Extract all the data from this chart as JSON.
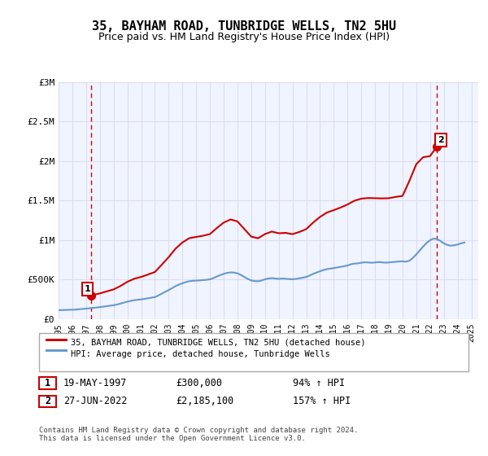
{
  "title": "35, BAYHAM ROAD, TUNBRIDGE WELLS, TN2 5HU",
  "subtitle": "Price paid vs. HM Land Registry's House Price Index (HPI)",
  "ylabel_ticks": [
    "£0",
    "£500K",
    "£1M",
    "£1.5M",
    "£2M",
    "£2.5M",
    "£3M"
  ],
  "ylabel_values": [
    0,
    500000,
    1000000,
    1500000,
    2000000,
    2500000,
    3000000
  ],
  "ylim": [
    0,
    3000000
  ],
  "xlim_start": 1995.0,
  "xlim_end": 2025.5,
  "xticks": [
    1995,
    1996,
    1997,
    1998,
    1999,
    2000,
    2001,
    2002,
    2003,
    2004,
    2005,
    2006,
    2007,
    2008,
    2009,
    2010,
    2011,
    2012,
    2013,
    2014,
    2015,
    2016,
    2017,
    2018,
    2019,
    2020,
    2021,
    2022,
    2023,
    2024,
    2025
  ],
  "sale1_x": 1997.38,
  "sale1_y": 300000,
  "sale1_label": "1",
  "sale1_date": "19-MAY-1997",
  "sale1_price": "£300,000",
  "sale1_hpi": "94% ↑ HPI",
  "sale2_x": 2022.49,
  "sale2_y": 2185100,
  "sale2_label": "2",
  "sale2_date": "27-JUN-2022",
  "sale2_price": "£2,185,100",
  "sale2_hpi": "157% ↑ HPI",
  "hpi_color": "#6699cc",
  "sale_color": "#cc0000",
  "dot_color": "#cc0000",
  "vline_color": "#cc0000",
  "grid_color": "#ddddee",
  "bg_color": "#f0f4ff",
  "legend_label1": "35, BAYHAM ROAD, TUNBRIDGE WELLS, TN2 5HU (detached house)",
  "legend_label2": "HPI: Average price, detached house, Tunbridge Wells",
  "footer": "Contains HM Land Registry data © Crown copyright and database right 2024.\nThis data is licensed under the Open Government Licence v3.0.",
  "hpi_data_x": [
    1995.0,
    1995.25,
    1995.5,
    1995.75,
    1996.0,
    1996.25,
    1996.5,
    1996.75,
    1997.0,
    1997.25,
    1997.5,
    1997.75,
    1998.0,
    1998.25,
    1998.5,
    1998.75,
    1999.0,
    1999.25,
    1999.5,
    1999.75,
    2000.0,
    2000.25,
    2000.5,
    2000.75,
    2001.0,
    2001.25,
    2001.5,
    2001.75,
    2002.0,
    2002.25,
    2002.5,
    2002.75,
    2003.0,
    2003.25,
    2003.5,
    2003.75,
    2004.0,
    2004.25,
    2004.5,
    2004.75,
    2005.0,
    2005.25,
    2005.5,
    2005.75,
    2006.0,
    2006.25,
    2006.5,
    2006.75,
    2007.0,
    2007.25,
    2007.5,
    2007.75,
    2008.0,
    2008.25,
    2008.5,
    2008.75,
    2009.0,
    2009.25,
    2009.5,
    2009.75,
    2010.0,
    2010.25,
    2010.5,
    2010.75,
    2011.0,
    2011.25,
    2011.5,
    2011.75,
    2012.0,
    2012.25,
    2012.5,
    2012.75,
    2013.0,
    2013.25,
    2013.5,
    2013.75,
    2014.0,
    2014.25,
    2014.5,
    2014.75,
    2015.0,
    2015.25,
    2015.5,
    2015.75,
    2016.0,
    2016.25,
    2016.5,
    2016.75,
    2017.0,
    2017.25,
    2017.5,
    2017.75,
    2018.0,
    2018.25,
    2018.5,
    2018.75,
    2019.0,
    2019.25,
    2019.5,
    2019.75,
    2020.0,
    2020.25,
    2020.5,
    2020.75,
    2021.0,
    2021.25,
    2021.5,
    2021.75,
    2022.0,
    2022.25,
    2022.5,
    2022.75,
    2023.0,
    2023.25,
    2023.5,
    2023.75,
    2024.0,
    2024.25,
    2024.5
  ],
  "hpi_data_y": [
    115000,
    116000,
    117000,
    118500,
    120000,
    122000,
    126000,
    130000,
    134000,
    138000,
    143000,
    148000,
    153000,
    159000,
    165000,
    171000,
    177000,
    186000,
    197000,
    210000,
    222000,
    232000,
    240000,
    246000,
    251000,
    257000,
    265000,
    272000,
    280000,
    300000,
    323000,
    346000,
    368000,
    393000,
    418000,
    438000,
    455000,
    470000,
    480000,
    486000,
    488000,
    491000,
    495000,
    498000,
    505000,
    520000,
    540000,
    558000,
    573000,
    586000,
    592000,
    590000,
    580000,
    560000,
    535000,
    510000,
    490000,
    482000,
    480000,
    490000,
    505000,
    515000,
    520000,
    515000,
    510000,
    515000,
    512000,
    508000,
    505000,
    510000,
    518000,
    525000,
    535000,
    553000,
    573000,
    590000,
    607000,
    622000,
    633000,
    640000,
    647000,
    655000,
    663000,
    670000,
    680000,
    695000,
    703000,
    706000,
    715000,
    720000,
    718000,
    714000,
    718000,
    722000,
    720000,
    715000,
    718000,
    722000,
    726000,
    730000,
    732000,
    728000,
    740000,
    775000,
    820000,
    870000,
    920000,
    965000,
    1000000,
    1020000,
    1015000,
    990000,
    960000,
    940000,
    930000,
    935000,
    945000,
    960000,
    970000
  ],
  "red_line_x": [
    1997.38,
    1997.75,
    1998.0,
    1998.5,
    1999.0,
    1999.5,
    2000.0,
    2000.5,
    2001.0,
    2001.5,
    2002.0,
    2002.5,
    2003.0,
    2003.5,
    2004.0,
    2004.5,
    2005.0,
    2005.5,
    2006.0,
    2006.5,
    2007.0,
    2007.5,
    2008.0,
    2008.5,
    2009.0,
    2009.5,
    2010.0,
    2010.5,
    2011.0,
    2011.5,
    2012.0,
    2012.5,
    2013.0,
    2013.5,
    2014.0,
    2014.5,
    2015.0,
    2015.5,
    2016.0,
    2016.5,
    2017.0,
    2017.5,
    2018.0,
    2018.5,
    2019.0,
    2019.5,
    2020.0,
    2020.5,
    2021.0,
    2021.5,
    2022.0,
    2022.49
  ],
  "red_line_y": [
    300000,
    316000,
    326000,
    352000,
    377000,
    420000,
    473000,
    512000,
    535000,
    565000,
    597000,
    689000,
    785000,
    892000,
    971000,
    1025000,
    1041000,
    1056000,
    1077000,
    1153000,
    1222000,
    1262000,
    1237000,
    1141000,
    1045000,
    1024000,
    1077000,
    1109000,
    1087000,
    1092000,
    1076000,
    1104000,
    1140000,
    1222000,
    1294000,
    1349000,
    1380000,
    1413000,
    1451000,
    1499000,
    1525000,
    1533000,
    1531000,
    1528000,
    1531000,
    1547000,
    1560000,
    1752000,
    1962000,
    2050000,
    2063000,
    2185100
  ]
}
